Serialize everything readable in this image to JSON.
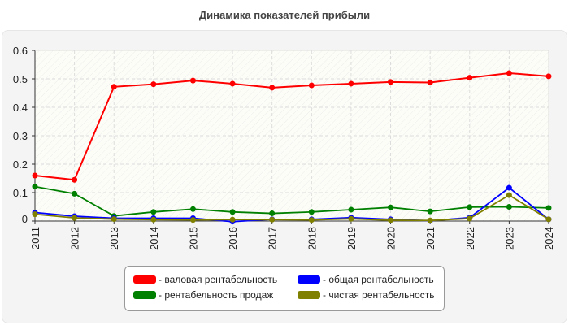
{
  "chart_data": {
    "type": "line",
    "title": "Динамика показателей прибыли",
    "xlabel": "",
    "ylabel": "",
    "x": [
      "2011",
      "2012",
      "2013",
      "2014",
      "2015",
      "2016",
      "2017",
      "2018",
      "2019",
      "2020",
      "2021",
      "2022",
      "2023",
      "2024"
    ],
    "ylim": [
      0,
      0.6
    ],
    "yticks": [
      "0",
      "0.1",
      "0.2",
      "0.3",
      "0.4",
      "0.5",
      "0.6"
    ],
    "grid": true,
    "legend_placement": "bottom",
    "series": [
      {
        "name": "- валовая рентабельность",
        "color": "#ff0000",
        "values": [
          0.16,
          0.145,
          0.472,
          0.481,
          0.494,
          0.483,
          0.469,
          0.477,
          0.483,
          0.489,
          0.487,
          0.504,
          0.52,
          0.509
        ]
      },
      {
        "name": "- общая рентабельность",
        "color": "#0000ff",
        "values": [
          0.03,
          0.017,
          0.01,
          0.01,
          0.01,
          -0.002,
          0.006,
          0.006,
          0.012,
          0.006,
          0.001,
          0.012,
          0.117,
          0.006
        ]
      },
      {
        "name": "- рентабельность продаж",
        "color": "#008000",
        "values": [
          0.121,
          0.096,
          0.018,
          0.032,
          0.042,
          0.032,
          0.027,
          0.032,
          0.04,
          0.048,
          0.034,
          0.049,
          0.05,
          0.046
        ]
      },
      {
        "name": "- чистая рентабельность",
        "color": "#808000",
        "values": [
          0.024,
          0.011,
          0.007,
          0.005,
          0.004,
          0.005,
          0.005,
          0.004,
          0.008,
          0.003,
          0.002,
          0.009,
          0.091,
          0.006
        ]
      }
    ]
  }
}
